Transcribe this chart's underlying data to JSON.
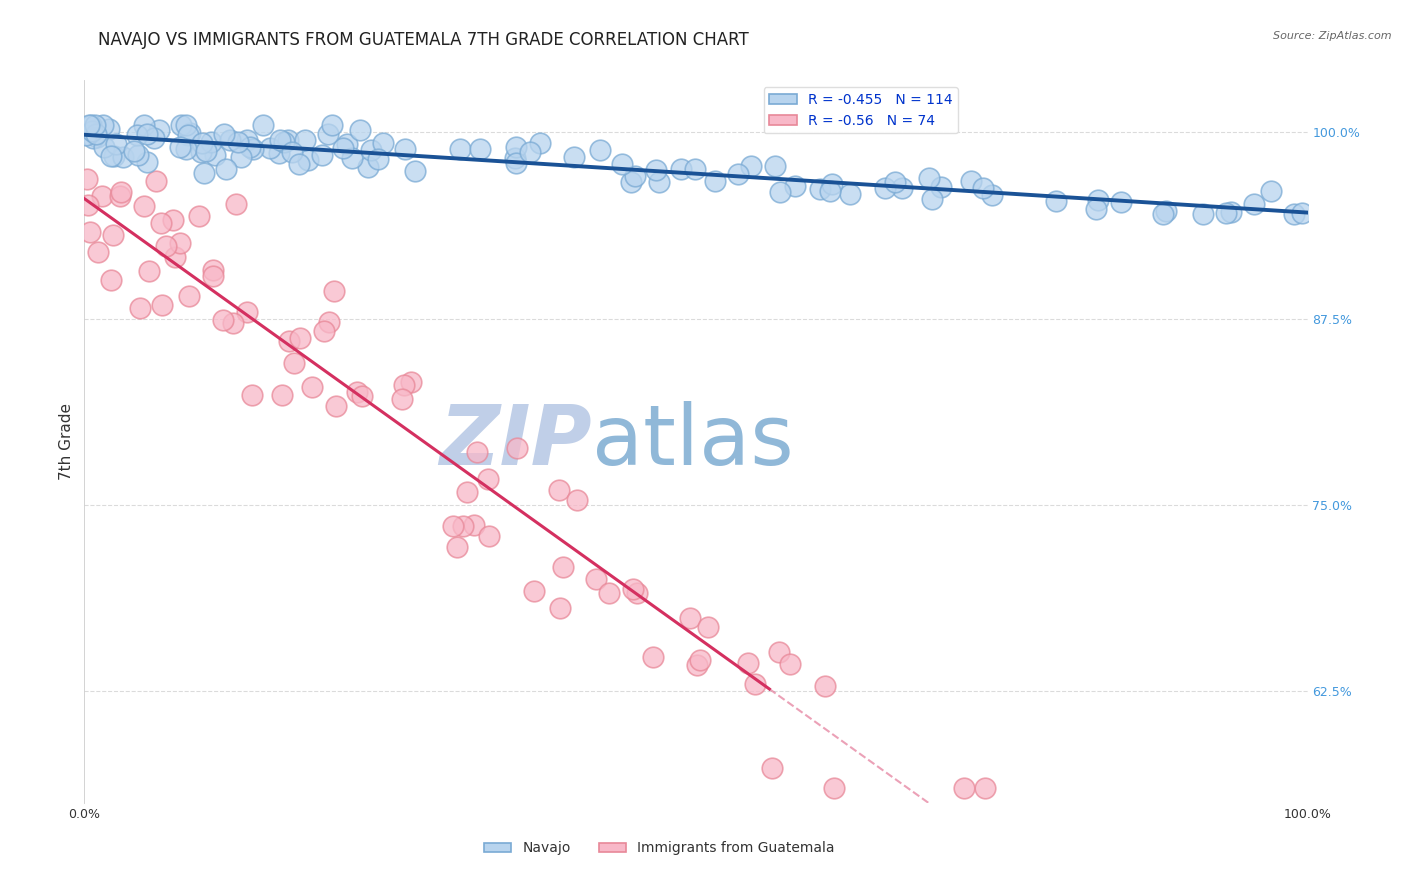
{
  "title": "NAVAJO VS IMMIGRANTS FROM GUATEMALA 7TH GRADE CORRELATION CHART",
  "source_text": "Source: ZipAtlas.com",
  "ylabel": "7th Grade",
  "xlim": [
    0.0,
    1.0
  ],
  "ylim": [
    0.55,
    1.035
  ],
  "x_ticks": [
    0.0,
    0.25,
    0.5,
    0.75,
    1.0
  ],
  "x_tick_labels": [
    "0.0%",
    "",
    "",
    "",
    "100.0%"
  ],
  "y_ticks": [
    0.625,
    0.75,
    0.875,
    1.0
  ],
  "y_tick_labels_right": [
    "62.5%",
    "75.0%",
    "87.5%",
    "100.0%"
  ],
  "navajo_R": -0.455,
  "navajo_N": 114,
  "guatemala_R": -0.56,
  "guatemala_N": 74,
  "navajo_color": "#b8d4ee",
  "navajo_edge_color": "#7aaad4",
  "navajo_line_color": "#1a5296",
  "guatemala_color": "#f8b8c8",
  "guatemala_edge_color": "#e88898",
  "guatemala_line_color": "#d43060",
  "watermark_zip_color": "#c0cfe8",
  "watermark_atlas_color": "#90b8d8",
  "background_color": "#ffffff",
  "title_fontsize": 12,
  "legend_fontsize": 10,
  "axis_label_fontsize": 10,
  "tick_fontsize": 9,
  "right_tick_color": "#4499dd",
  "legend_text_color": "#0033cc"
}
